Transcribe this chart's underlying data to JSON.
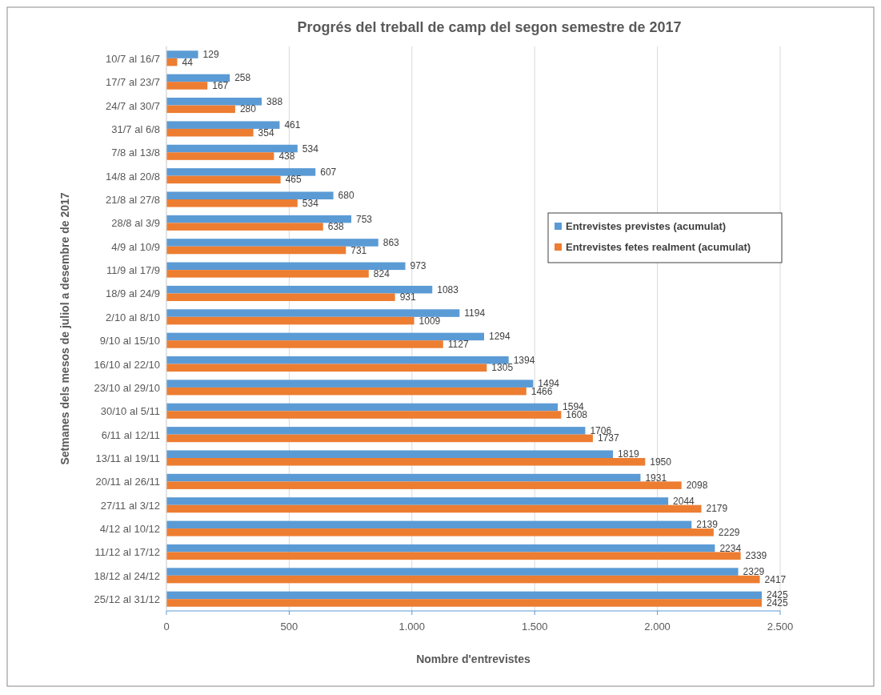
{
  "chart_data": {
    "type": "bar",
    "orientation": "horizontal",
    "title": "Progrés del treball de camp del segon semestre de 2017",
    "xlabel": "Nombre d'entrevistes",
    "ylabel": "Setmanes dels mesos de juliol a desembre de 2017",
    "categories": [
      "10/7 al 16/7",
      "17/7 al 23/7",
      "24/7 al 30/7",
      "31/7 al 6/8",
      "7/8 al 13/8",
      "14/8 al 20/8",
      "21/8 al 27/8",
      "28/8 al 3/9",
      "4/9 al 10/9",
      "11/9 al 17/9",
      "18/9 al 24/9",
      "2/10 al 8/10",
      "9/10 al 15/10",
      "16/10 al 22/10",
      "23/10 al 29/10",
      "30/10 al 5/11",
      "6/11 al 12/11",
      "13/11 al 19/11",
      "20/11 al 26/11",
      "27/11 al 3/12",
      "4/12 al 10/12",
      "11/12 al 17/12",
      "18/12 al 24/12",
      "25/12 al 31/12"
    ],
    "series": [
      {
        "name": "Entrevistes previstes (acumulat)",
        "color": "#5b9bd5",
        "values": [
          129,
          258,
          388,
          461,
          534,
          607,
          680,
          753,
          863,
          973,
          1083,
          1194,
          1294,
          1394,
          1494,
          1594,
          1706,
          1819,
          1931,
          2044,
          2139,
          2234,
          2329,
          2425
        ]
      },
      {
        "name": "Entrevistes fetes realment (acumulat)",
        "color": "#ed7d31",
        "values": [
          44,
          167,
          280,
          354,
          438,
          465,
          534,
          638,
          731,
          824,
          931,
          1009,
          1127,
          1305,
          1466,
          1608,
          1737,
          1950,
          2098,
          2179,
          2229,
          2339,
          2417,
          2425
        ]
      }
    ],
    "xlim": [
      0,
      2500
    ],
    "xticks": [
      0,
      500,
      {
        "value": 1000,
        "label": "1.000"
      },
      {
        "value": 1500,
        "label": "1.500"
      },
      {
        "value": 2000,
        "label": "2.000"
      },
      {
        "value": 2500,
        "label": "2.500"
      }
    ],
    "grid": "x",
    "legend": "right",
    "data_labels": true
  }
}
